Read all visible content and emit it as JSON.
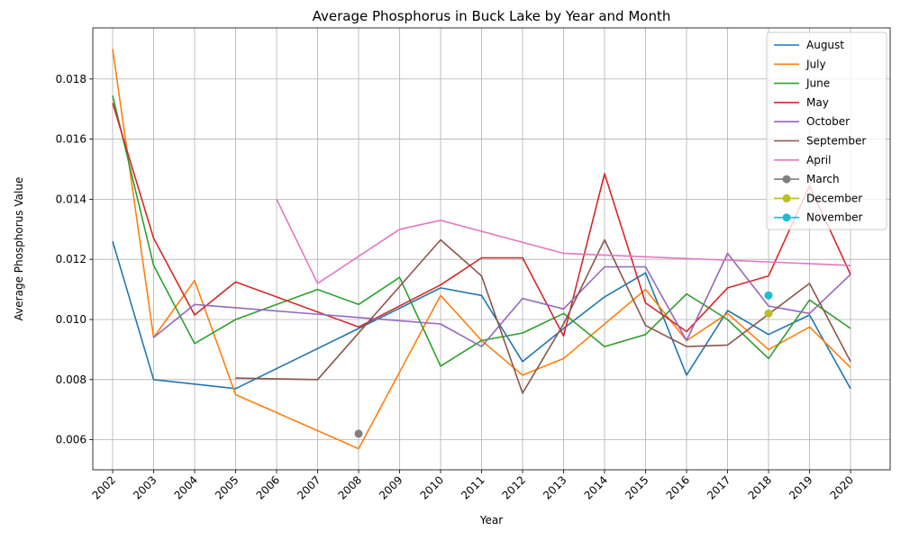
{
  "chart_data": {
    "type": "line",
    "title": "Average Phosphorus in Buck Lake by Year and Month",
    "xlabel": "Year",
    "ylabel": "Average Phosphorus Value",
    "x_tick_labels": [
      "2002",
      "2003",
      "2004",
      "2005",
      "2006",
      "2007",
      "2008",
      "2009",
      "2010",
      "2011",
      "2012",
      "2013",
      "2014",
      "2015",
      "2016",
      "2017",
      "2018",
      "2019",
      "2020"
    ],
    "ylim": [
      0.005,
      0.0197
    ],
    "y_ticks": [
      0.006,
      0.008,
      0.01,
      0.012,
      0.014,
      0.016,
      0.018
    ],
    "y_tick_labels": [
      "0.006",
      "0.008",
      "0.010",
      "0.012",
      "0.014",
      "0.016",
      "0.018"
    ],
    "grid": true,
    "legend_position": "top-right",
    "series": [
      {
        "name": "August",
        "color": "#1f77b4",
        "marker": false,
        "points": [
          [
            2002,
            0.0126
          ],
          [
            2003,
            0.008
          ],
          [
            2005,
            0.0077
          ],
          [
            2008,
            0.0097
          ],
          [
            2010,
            0.01105
          ],
          [
            2011,
            0.0108
          ],
          [
            2012,
            0.0086
          ],
          [
            2013,
            0.0097
          ],
          [
            2014,
            0.01075
          ],
          [
            2015,
            0.01155
          ],
          [
            2016,
            0.00815
          ],
          [
            2017,
            0.0103
          ],
          [
            2018,
            0.0095
          ],
          [
            2019,
            0.01015
          ],
          [
            2020,
            0.0077
          ]
        ]
      },
      {
        "name": "July",
        "color": "#ff7f0e",
        "marker": false,
        "points": [
          [
            2002,
            0.019
          ],
          [
            2003,
            0.0094
          ],
          [
            2004,
            0.0113
          ],
          [
            2005,
            0.0075
          ],
          [
            2008,
            0.0057
          ],
          [
            2010,
            0.0108
          ],
          [
            2011,
            0.0093
          ],
          [
            2012,
            0.00815
          ],
          [
            2013,
            0.0087
          ],
          [
            2015,
            0.011
          ],
          [
            2016,
            0.0093
          ],
          [
            2017,
            0.0102
          ],
          [
            2018,
            0.009
          ],
          [
            2019,
            0.00975
          ],
          [
            2020,
            0.0084
          ]
        ]
      },
      {
        "name": "June",
        "color": "#2ca02c",
        "marker": false,
        "points": [
          [
            2002,
            0.01745
          ],
          [
            2003,
            0.0118
          ],
          [
            2004,
            0.0092
          ],
          [
            2005,
            0.01
          ],
          [
            2007,
            0.011
          ],
          [
            2008,
            0.0105
          ],
          [
            2009,
            0.0114
          ],
          [
            2010,
            0.00845
          ],
          [
            2011,
            0.0093
          ],
          [
            2012,
            0.00955
          ],
          [
            2013,
            0.0102
          ],
          [
            2014,
            0.0091
          ],
          [
            2015,
            0.0095
          ],
          [
            2016,
            0.01085
          ],
          [
            2017,
            0.01
          ],
          [
            2018,
            0.0087
          ],
          [
            2019,
            0.01065
          ],
          [
            2020,
            0.0097
          ]
        ]
      },
      {
        "name": "May",
        "color": "#d62728",
        "marker": false,
        "points": [
          [
            2002,
            0.0172
          ],
          [
            2003,
            0.0127
          ],
          [
            2004,
            0.01015
          ],
          [
            2005,
            0.01125
          ],
          [
            2008,
            0.00975
          ],
          [
            2010,
            0.01115
          ],
          [
            2011,
            0.01205
          ],
          [
            2012,
            0.01205
          ],
          [
            2013,
            0.00945
          ],
          [
            2014,
            0.01485
          ],
          [
            2015,
            0.01055
          ],
          [
            2016,
            0.0096
          ],
          [
            2017,
            0.01105
          ],
          [
            2018,
            0.01145
          ],
          [
            2019,
            0.01445
          ],
          [
            2020,
            0.0115
          ]
        ]
      },
      {
        "name": "October",
        "color": "#9467bd",
        "marker": false,
        "points": [
          [
            2003,
            0.0094
          ],
          [
            2004,
            0.0105
          ],
          [
            2010,
            0.00985
          ],
          [
            2011,
            0.0091
          ],
          [
            2012,
            0.0107
          ],
          [
            2013,
            0.01035
          ],
          [
            2014,
            0.01175
          ],
          [
            2015,
            0.01175
          ],
          [
            2016,
            0.0093
          ],
          [
            2017,
            0.0122
          ],
          [
            2018,
            0.01045
          ],
          [
            2019,
            0.0102
          ],
          [
            2020,
            0.0115
          ]
        ]
      },
      {
        "name": "September",
        "color": "#8c564b",
        "marker": false,
        "points": [
          [
            2005,
            0.00805
          ],
          [
            2007,
            0.008
          ],
          [
            2010,
            0.01265
          ],
          [
            2011,
            0.01145
          ],
          [
            2012,
            0.00755
          ],
          [
            2013,
            0.00985
          ],
          [
            2014,
            0.01265
          ],
          [
            2015,
            0.0098
          ],
          [
            2016,
            0.0091
          ],
          [
            2017,
            0.00915
          ],
          [
            2019,
            0.0112
          ],
          [
            2020,
            0.0086
          ]
        ]
      },
      {
        "name": "April",
        "color": "#e377c2",
        "marker": false,
        "points": [
          [
            2006,
            0.014
          ],
          [
            2007,
            0.0112
          ],
          [
            2009,
            0.013
          ],
          [
            2010,
            0.0133
          ],
          [
            2013,
            0.0122
          ],
          [
            2020,
            0.0118
          ]
        ]
      },
      {
        "name": "March",
        "color": "#7f7f7f",
        "marker": true,
        "points": [
          [
            2008,
            0.0062
          ]
        ]
      },
      {
        "name": "December",
        "color": "#bcbd22",
        "marker": true,
        "points": [
          [
            2018,
            0.0102
          ]
        ]
      },
      {
        "name": "November",
        "color": "#17becf",
        "marker": true,
        "points": [
          [
            2018,
            0.0108
          ]
        ]
      }
    ]
  }
}
